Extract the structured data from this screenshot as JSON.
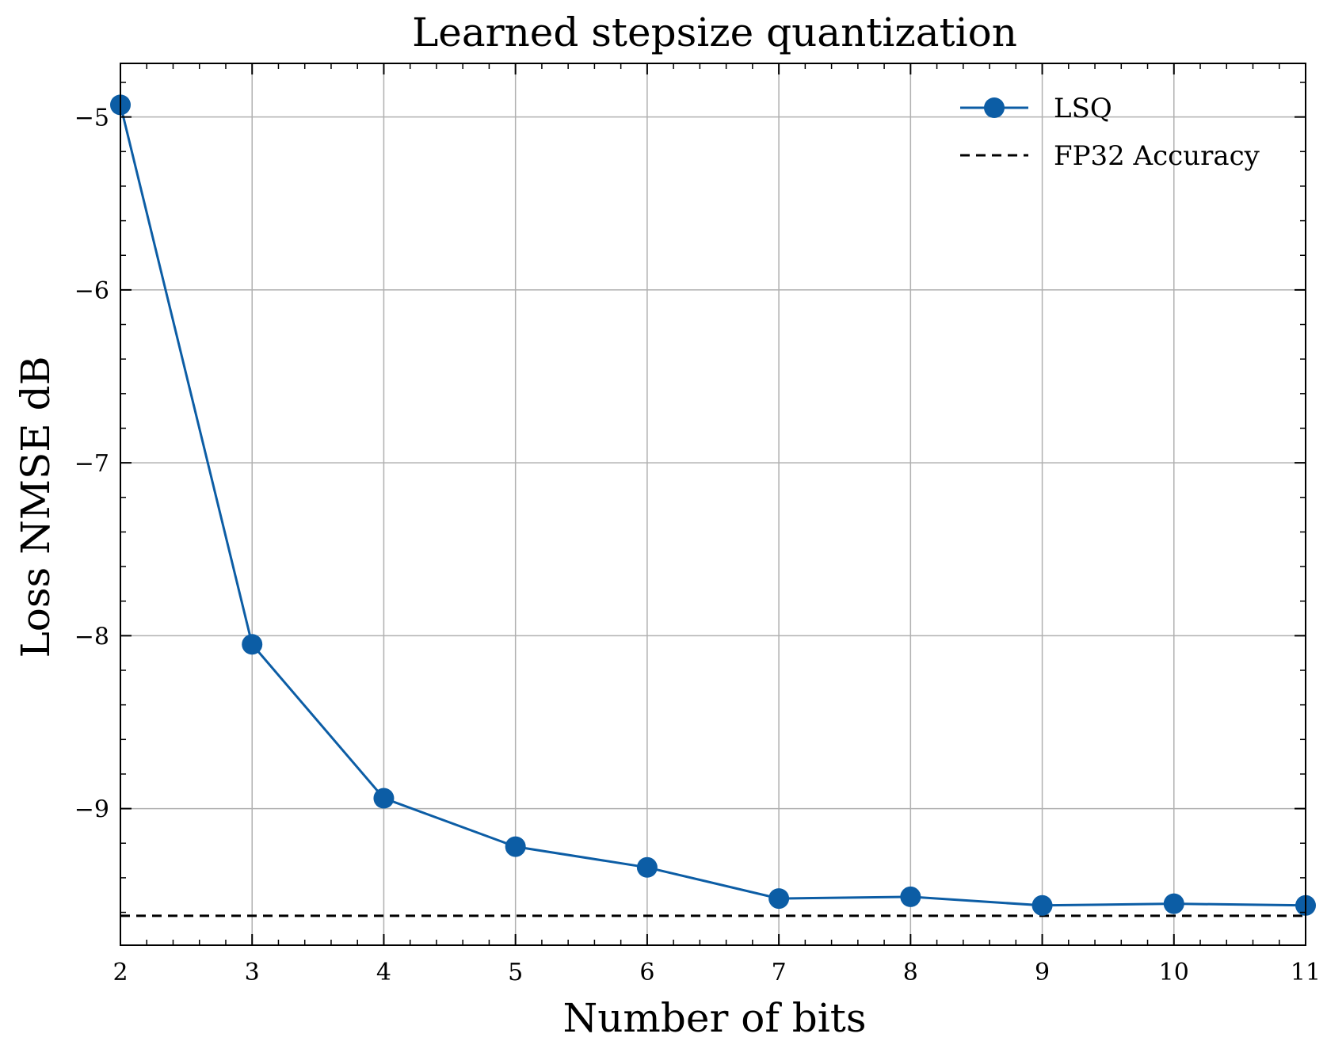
{
  "chart_data": {
    "type": "line",
    "title": "Learned stepsize quantization",
    "xlabel": "Number of bits",
    "ylabel": "Loss NMSE dB",
    "xlim": [
      2,
      11
    ],
    "ylim": [
      -9.79,
      -4.69
    ],
    "x_ticks": [
      2,
      3,
      4,
      5,
      6,
      7,
      8,
      9,
      10,
      11
    ],
    "y_ticks": [
      -5,
      -6,
      -7,
      -8,
      -9
    ],
    "x_tick_labels": [
      "2",
      "3",
      "4",
      "5",
      "6",
      "7",
      "8",
      "9",
      "10",
      "11"
    ],
    "y_tick_labels": [
      "−5",
      "−6",
      "−7",
      "−8",
      "−9"
    ],
    "grid": true,
    "legend_position": "top-right",
    "series": [
      {
        "name": "LSQ",
        "style": "solid-with-markers",
        "color": "#0C5DA5",
        "x": [
          2,
          3,
          4,
          5,
          6,
          7,
          8,
          9,
          10,
          11
        ],
        "y": [
          -4.93,
          -8.05,
          -8.94,
          -9.22,
          -9.34,
          -9.52,
          -9.51,
          -9.56,
          -9.55,
          -9.56
        ]
      }
    ],
    "reference_lines": [
      {
        "name": "FP32 Accuracy",
        "style": "dashed",
        "color": "#000000",
        "y": -9.62
      }
    ]
  }
}
